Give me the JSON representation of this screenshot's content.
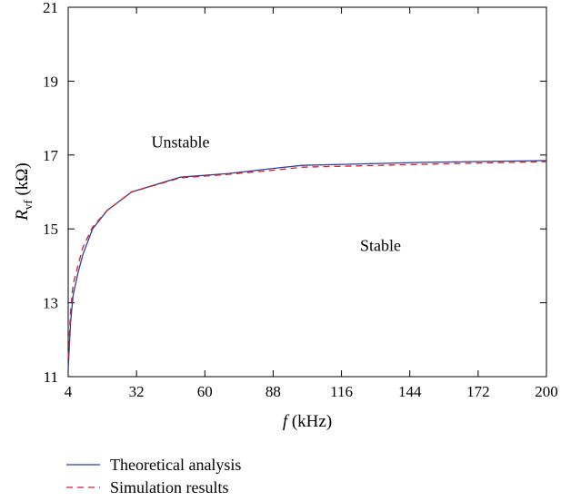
{
  "chart_data": {
    "type": "line",
    "xlabel": {
      "var": "f",
      "unit": " (kHz)"
    },
    "ylabel": {
      "var": "R",
      "sub": "vf",
      "unit": " (kΩ)"
    },
    "xlim": [
      4,
      200
    ],
    "ylim": [
      11,
      21
    ],
    "xticks": [
      "4",
      "32",
      "60",
      "88",
      "116",
      "144",
      "172",
      "200"
    ],
    "yticks": [
      "11",
      "13",
      "15",
      "17",
      "19",
      "21"
    ],
    "grid": false,
    "legend_position": "bottom",
    "annotations": [
      {
        "text": "Unstable",
        "x": 50,
        "y": 17.2
      },
      {
        "text": "Stable",
        "x": 132,
        "y": 14.4
      }
    ],
    "series": [
      {
        "name": "Theoretical analysis",
        "color": "#2b3f9e",
        "dash": "solid",
        "x": [
          4,
          5,
          6,
          8,
          10,
          14,
          20,
          30,
          50,
          70,
          90,
          100,
          150,
          200
        ],
        "y": [
          11.2,
          12.5,
          13.2,
          13.8,
          14.3,
          15.0,
          15.5,
          16.0,
          16.4,
          16.5,
          16.65,
          16.72,
          16.8,
          16.85
        ]
      },
      {
        "name": "Simulation results",
        "color": "#d42020",
        "dash": "dashed",
        "x": [
          4,
          5,
          6,
          8,
          10,
          14,
          20,
          30,
          50,
          70,
          90,
          100,
          150,
          200
        ],
        "y": [
          11.5,
          12.8,
          13.5,
          14.0,
          14.5,
          15.05,
          15.5,
          16.0,
          16.38,
          16.48,
          16.6,
          16.67,
          16.75,
          16.82
        ]
      }
    ]
  }
}
